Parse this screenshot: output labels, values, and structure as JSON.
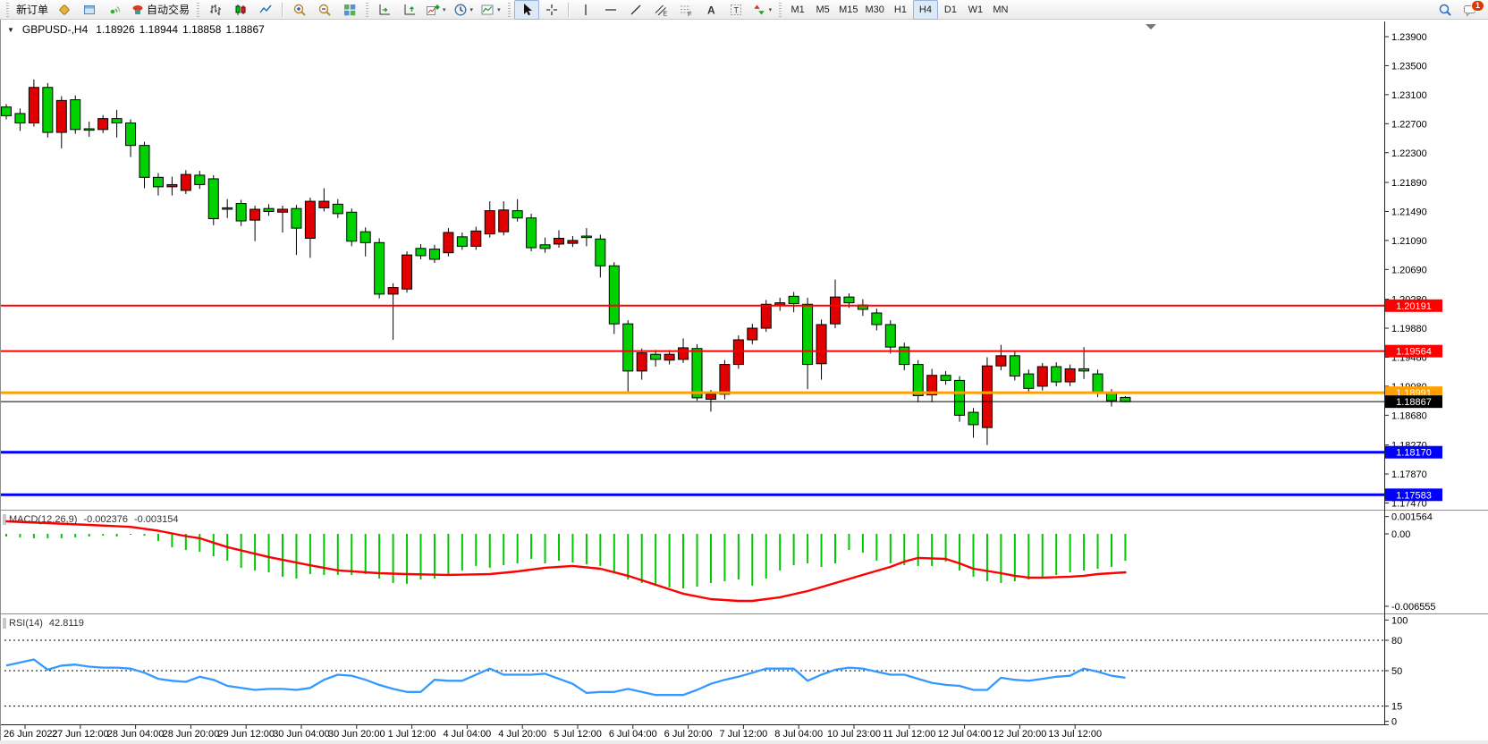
{
  "toolbar": {
    "new_order_label": "新订单",
    "autotrading_label": "自动交易",
    "timeframes": [
      "M1",
      "M5",
      "M15",
      "M30",
      "H1",
      "H4",
      "D1",
      "W1",
      "MN"
    ],
    "active_timeframe": "H4",
    "notification_count": "1",
    "items": [
      {
        "type": "grip"
      },
      {
        "type": "button",
        "name": "new-order-button",
        "icon": "",
        "label_key": "new_order_label"
      },
      {
        "type": "button",
        "name": "chart-profile-button",
        "icon": "gold-diamond"
      },
      {
        "type": "button",
        "name": "market-window-button",
        "icon": "blue-window"
      },
      {
        "type": "button",
        "name": "signals-button",
        "icon": "signal"
      },
      {
        "type": "button",
        "name": "autotrading-button",
        "icon": "autotrade",
        "label_key": "autotrading_label"
      },
      {
        "type": "grip"
      },
      {
        "type": "button",
        "name": "bar-chart-button",
        "icon": "bars"
      },
      {
        "type": "button",
        "name": "candlestick-chart-button",
        "icon": "candles"
      },
      {
        "type": "button",
        "name": "line-chart-button",
        "icon": "linechart"
      },
      {
        "type": "sep"
      },
      {
        "type": "button",
        "name": "zoom-in-button",
        "icon": "zoom-in"
      },
      {
        "type": "button",
        "name": "zoom-out-button",
        "icon": "zoom-out"
      },
      {
        "type": "button",
        "name": "tile-windows-button",
        "icon": "tiles"
      },
      {
        "type": "grip"
      },
      {
        "type": "button",
        "name": "auto-scroll-button",
        "icon": "autoscroll"
      },
      {
        "type": "button",
        "name": "chart-shift-button",
        "icon": "chartshift"
      },
      {
        "type": "button",
        "name": "indicators-button",
        "icon": "add-indicator",
        "caret": true
      },
      {
        "type": "button",
        "name": "periods-button",
        "icon": "clock",
        "caret": true
      },
      {
        "type": "button",
        "name": "templates-button",
        "icon": "template",
        "caret": true
      },
      {
        "type": "grip"
      },
      {
        "type": "button",
        "name": "cursor-button",
        "icon": "cursor",
        "active": true
      },
      {
        "type": "button",
        "name": "crosshair-button",
        "icon": "crosshair"
      },
      {
        "type": "sep"
      },
      {
        "type": "button",
        "name": "vertical-line-button",
        "icon": "vline"
      },
      {
        "type": "button",
        "name": "horizontal-line-button",
        "icon": "hline"
      },
      {
        "type": "button",
        "name": "trendline-button",
        "icon": "trendline"
      },
      {
        "type": "button",
        "name": "channel-button",
        "icon": "channel"
      },
      {
        "type": "button",
        "name": "fibonacci-button",
        "icon": "fibo"
      },
      {
        "type": "button",
        "name": "text-button",
        "icon": "text-a"
      },
      {
        "type": "button",
        "name": "text-label-button",
        "icon": "text-t"
      },
      {
        "type": "button",
        "name": "arrows-button",
        "icon": "shapes",
        "caret": true
      },
      {
        "type": "grip"
      },
      {
        "type": "timeframes"
      },
      {
        "type": "spacer"
      },
      {
        "type": "button",
        "name": "search-button",
        "icon": "magnifier-blue"
      },
      {
        "type": "button",
        "name": "notifications-button",
        "icon": "chat",
        "badge": "1"
      }
    ]
  },
  "chart": {
    "title": {
      "symbol_period": "GBPUSD-,H4",
      "open": "1.18926",
      "high": "1.18944",
      "low": "1.18858",
      "close": "1.18867"
    },
    "price_axis_ticks": [
      {
        "label": "1.23900",
        "value": 1.239
      },
      {
        "label": "1.23500",
        "value": 1.235
      },
      {
        "label": "1.23100",
        "value": 1.231
      },
      {
        "label": "1.22700",
        "value": 1.227
      },
      {
        "label": "1.22300",
        "value": 1.223
      },
      {
        "label": "1.21890",
        "value": 1.2189
      },
      {
        "label": "1.21490",
        "value": 1.2149
      },
      {
        "label": "1.21090",
        "value": 1.2109
      },
      {
        "label": "1.20690",
        "value": 1.2069
      },
      {
        "label": "1.20280",
        "value": 1.2028
      },
      {
        "label": "1.19880",
        "value": 1.1988
      },
      {
        "label": "1.19480",
        "value": 1.1948
      },
      {
        "label": "1.19080",
        "value": 1.1908
      },
      {
        "label": "1.18680",
        "value": 1.1868
      },
      {
        "label": "1.18270",
        "value": 1.1827
      },
      {
        "label": "1.17870",
        "value": 1.1787
      },
      {
        "label": "1.17470",
        "value": 1.1747
      }
    ],
    "time_axis_labels": [
      "26 Jun 2022",
      "27 Jun 12:00",
      "28 Jun 04:00",
      "28 Jun 20:00",
      "29 Jun 12:00",
      "30 Jun 04:00",
      "30 Jun 20:00",
      "1 Jul 12:00",
      "4 Jul 04:00",
      "4 Jul 20:00",
      "5 Jul 12:00",
      "6 Jul 04:00",
      "6 Jul 20:00",
      "7 Jul 12:00",
      "8 Jul 04:00",
      "10 Jul 23:00",
      "11 Jul 12:00",
      "12 Jul 04:00",
      "12 Jul 20:00",
      "13 Jul 12:00"
    ]
  },
  "macd": {
    "label": "MACD(12,26,9)",
    "value_main": "-0.002376",
    "value_signal": "-0.003154",
    "axis_labels": [
      {
        "label": "0.001564",
        "value": 0.001564
      },
      {
        "label": "0.00",
        "value": 0
      },
      {
        "label": "-0.006555",
        "value": -0.006555
      }
    ]
  },
  "rsi": {
    "label": "RSI(14)",
    "value": "42.8119",
    "axis_labels": [
      {
        "label": "100",
        "value": 100
      },
      {
        "label": "80",
        "value": 80
      },
      {
        "label": "50",
        "value": 50
      },
      {
        "label": "15",
        "value": 15
      },
      {
        "label": "0",
        "value": 0
      }
    ],
    "dashed_levels": [
      80,
      50,
      15
    ]
  },
  "colors": {
    "bull_candle": "#e00000",
    "bear_candle": "#00d200",
    "candle_outline": "#000000",
    "macd_histogram": "#00c800",
    "macd_signal": "#ff0000",
    "rsi_line": "#3399ff",
    "bid_line": "#000000"
  },
  "chart_data": {
    "type": "candlestick",
    "symbol": "GBPUSD-",
    "timeframe": "H4",
    "ohlc": [
      [
        1.2293,
        1.2297,
        1.2276,
        1.2281
      ],
      [
        1.2284,
        1.2291,
        1.226,
        1.2271
      ],
      [
        1.2271,
        1.2331,
        1.2266,
        1.232
      ],
      [
        1.232,
        1.2326,
        1.2251,
        1.2258
      ],
      [
        1.2258,
        1.2308,
        1.2236,
        1.2302
      ],
      [
        1.2303,
        1.2309,
        1.2256,
        1.2262
      ],
      [
        1.2263,
        1.2273,
        1.2252,
        1.2261
      ],
      [
        1.2262,
        1.2282,
        1.2257,
        1.2277
      ],
      [
        1.2277,
        1.2289,
        1.2251,
        1.2271
      ],
      [
        1.2271,
        1.2276,
        1.2224,
        1.224
      ],
      [
        1.224,
        1.2245,
        1.2181,
        1.2196
      ],
      [
        1.2196,
        1.2202,
        1.2171,
        1.2183
      ],
      [
        1.2183,
        1.2197,
        1.2171,
        1.2186
      ],
      [
        1.2178,
        1.2206,
        1.2173,
        1.22
      ],
      [
        1.2199,
        1.2205,
        1.218,
        1.2186
      ],
      [
        1.2194,
        1.2199,
        1.213,
        1.2139
      ],
      [
        1.2154,
        1.2166,
        1.214,
        1.2152
      ],
      [
        1.216,
        1.2165,
        1.2129,
        1.2136
      ],
      [
        1.2137,
        1.2157,
        1.2108,
        1.2152
      ],
      [
        1.2153,
        1.2159,
        1.2143,
        1.2149
      ],
      [
        1.2148,
        1.2157,
        1.212,
        1.2152
      ],
      [
        1.2153,
        1.2158,
        1.2089,
        1.2126
      ],
      [
        1.2112,
        1.2168,
        1.2085,
        1.2163
      ],
      [
        1.2154,
        1.2181,
        1.2149,
        1.2163
      ],
      [
        1.2159,
        1.2166,
        1.214,
        1.2146
      ],
      [
        1.2148,
        1.2153,
        1.2101,
        1.2108
      ],
      [
        1.2121,
        1.2127,
        1.2087,
        1.2106
      ],
      [
        1.2106,
        1.2112,
        1.2029,
        1.2035
      ],
      [
        1.2035,
        1.205,
        1.1972,
        1.2044
      ],
      [
        1.2042,
        1.2094,
        1.2037,
        1.2089
      ],
      [
        1.2098,
        1.2104,
        1.2083,
        1.2088
      ],
      [
        1.2097,
        1.2103,
        1.2078,
        1.2083
      ],
      [
        1.2092,
        1.2126,
        1.2087,
        1.212
      ],
      [
        1.2114,
        1.212,
        1.2096,
        1.2101
      ],
      [
        1.2101,
        1.2128,
        1.2096,
        1.2122
      ],
      [
        1.2118,
        1.2163,
        1.2113,
        1.215
      ],
      [
        1.2121,
        1.2163,
        1.2116,
        1.2151
      ],
      [
        1.215,
        1.2166,
        1.2135,
        1.214
      ],
      [
        1.214,
        1.2146,
        1.2094,
        1.2099
      ],
      [
        1.2103,
        1.2113,
        1.2092,
        1.2098
      ],
      [
        1.2104,
        1.2123,
        1.2099,
        1.2112
      ],
      [
        1.2105,
        1.2115,
        1.21,
        1.2109
      ],
      [
        1.2115,
        1.2126,
        1.2101,
        1.2113
      ],
      [
        1.2111,
        1.2117,
        1.2058,
        1.2074
      ],
      [
        1.2074,
        1.2079,
        1.198,
        1.1994
      ],
      [
        1.1994,
        1.1999,
        1.1898,
        1.1929
      ],
      [
        1.1929,
        1.196,
        1.1917,
        1.1954
      ],
      [
        1.1952,
        1.1958,
        1.1935,
        1.1945
      ],
      [
        1.1944,
        1.1958,
        1.1938,
        1.1952
      ],
      [
        1.1945,
        1.1974,
        1.194,
        1.1961
      ],
      [
        1.196,
        1.1966,
        1.1888,
        1.1892
      ],
      [
        1.189,
        1.1903,
        1.1873,
        1.1897
      ],
      [
        1.1897,
        1.1944,
        1.189,
        1.1938
      ],
      [
        1.1938,
        1.1978,
        1.1932,
        1.1972
      ],
      [
        1.1972,
        1.1994,
        1.1966,
        1.1988
      ],
      [
        1.1988,
        1.2027,
        1.1983,
        1.2021
      ],
      [
        1.2019,
        1.203,
        1.2012,
        1.2023
      ],
      [
        1.2032,
        1.2038,
        1.201,
        1.2022
      ],
      [
        1.2021,
        1.203,
        1.1904,
        1.1938
      ],
      [
        1.1939,
        1.2,
        1.1917,
        1.1993
      ],
      [
        1.1994,
        1.2055,
        1.1988,
        1.2031
      ],
      [
        1.2031,
        1.2036,
        1.2016,
        1.2023
      ],
      [
        1.202,
        1.2028,
        1.2005,
        1.2014
      ],
      [
        1.2009,
        1.2015,
        1.1985,
        1.1993
      ],
      [
        1.1993,
        1.1999,
        1.1953,
        1.1962
      ],
      [
        1.1962,
        1.1968,
        1.193,
        1.1938
      ],
      [
        1.1938,
        1.1944,
        1.1886,
        1.1895
      ],
      [
        1.1896,
        1.1932,
        1.1886,
        1.1923
      ],
      [
        1.1923,
        1.1929,
        1.191,
        1.1916
      ],
      [
        1.1916,
        1.1922,
        1.1859,
        1.1868
      ],
      [
        1.1872,
        1.1878,
        1.1837,
        1.1855
      ],
      [
        1.1851,
        1.1948,
        1.1827,
        1.1936
      ],
      [
        1.1936,
        1.1965,
        1.193,
        1.195
      ],
      [
        1.195,
        1.1956,
        1.1916,
        1.1922
      ],
      [
        1.1925,
        1.1931,
        1.1898,
        1.1905
      ],
      [
        1.1908,
        1.194,
        1.1902,
        1.1935
      ],
      [
        1.1935,
        1.1941,
        1.1908,
        1.1914
      ],
      [
        1.1914,
        1.1938,
        1.1908,
        1.1932
      ],
      [
        1.1932,
        1.1962,
        1.1918,
        1.1929
      ],
      [
        1.1925,
        1.1931,
        1.1893,
        1.1898
      ],
      [
        1.1898,
        1.1904,
        1.188,
        1.1888
      ],
      [
        1.18926,
        1.18944,
        1.18858,
        1.18867
      ]
    ],
    "horizontal_lines": [
      {
        "price": 1.20191,
        "label": "1.20191",
        "color": "#ff0000",
        "width": 2
      },
      {
        "price": 1.19564,
        "label": "1.19564",
        "color": "#ff0000",
        "width": 2
      },
      {
        "price": 1.18991,
        "label": "1.18991",
        "color": "#ffa000",
        "width": 3
      },
      {
        "price": 1.1817,
        "label": "1.18170",
        "color": "#0000ff",
        "width": 3
      },
      {
        "price": 1.17583,
        "label": "1.17583",
        "color": "#0000ff",
        "width": 3
      }
    ],
    "bid": {
      "price": 1.18867,
      "label": "1.18867"
    },
    "macd_histogram": [
      -0.00024,
      -0.00032,
      -0.0004,
      -0.0004,
      -0.0004,
      -0.00032,
      -0.00024,
      -0.00016,
      -0.00024,
      -8e-05,
      -0.00016,
      -0.00065,
      -0.00121,
      -0.00146,
      -0.00162,
      -0.00202,
      -0.00243,
      -0.00307,
      -0.00332,
      -0.00348,
      -0.00388,
      -0.00405,
      -0.00364,
      -0.00372,
      -0.00372,
      -0.00372,
      -0.00364,
      -0.00405,
      -0.00445,
      -0.00453,
      -0.00413,
      -0.00405,
      -0.00372,
      -0.00332,
      -0.00291,
      -0.00307,
      -0.00283,
      -0.00267,
      -0.00227,
      -0.00267,
      -0.00243,
      -0.00259,
      -0.00275,
      -0.00291,
      -0.00348,
      -0.00413,
      -0.00445,
      -0.00469,
      -0.00485,
      -0.00494,
      -0.00477,
      -0.00445,
      -0.00429,
      -0.00413,
      -0.00469,
      -0.00405,
      -0.00332,
      -0.00283,
      -0.00267,
      -0.00299,
      -0.00267,
      -0.00146,
      -0.0017,
      -0.00243,
      -0.00267,
      -0.00283,
      -0.00291,
      -0.00291,
      -0.00251,
      -0.00332,
      -0.00388,
      -0.00429,
      -0.00445,
      -0.00429,
      -0.00413,
      -0.00388,
      -0.00372,
      -0.00348,
      -0.00332,
      -0.00316,
      -0.00299,
      -0.00243
    ],
    "macd_signal_points": [
      [
        0,
        0.00113
      ],
      [
        3,
        0.00097
      ],
      [
        6,
        0.00081
      ],
      [
        9,
        0.00063
      ],
      [
        11,
        0.00028
      ],
      [
        13,
        -0.0002
      ],
      [
        14,
        -0.0004
      ],
      [
        16,
        -0.0012
      ],
      [
        19,
        -0.0021
      ],
      [
        22,
        -0.00285
      ],
      [
        24,
        -0.0033
      ],
      [
        27,
        -0.00356
      ],
      [
        29,
        -0.00364
      ],
      [
        32,
        -0.00372
      ],
      [
        35,
        -0.00364
      ],
      [
        37,
        -0.0034
      ],
      [
        39,
        -0.00307
      ],
      [
        41,
        -0.00291
      ],
      [
        43,
        -0.00316
      ],
      [
        45,
        -0.0038
      ],
      [
        47,
        -0.00461
      ],
      [
        49,
        -0.00542
      ],
      [
        51,
        -0.00591
      ],
      [
        53,
        -0.00607
      ],
      [
        54,
        -0.00607
      ],
      [
        56,
        -0.00574
      ],
      [
        58,
        -0.00518
      ],
      [
        60,
        -0.00445
      ],
      [
        62,
        -0.00372
      ],
      [
        64,
        -0.00299
      ],
      [
        65,
        -0.00251
      ],
      [
        66,
        -0.00218
      ],
      [
        68,
        -0.00227
      ],
      [
        69,
        -0.00267
      ],
      [
        70,
        -0.00316
      ],
      [
        72,
        -0.00356
      ],
      [
        73,
        -0.0038
      ],
      [
        74,
        -0.00396
      ],
      [
        75,
        -0.00396
      ],
      [
        77,
        -0.00388
      ],
      [
        78,
        -0.0038
      ],
      [
        79,
        -0.00364
      ],
      [
        81,
        -0.00348
      ]
    ],
    "rsi_values": [
      55,
      58,
      61,
      51,
      55,
      56,
      54,
      53,
      53,
      52,
      48,
      42,
      40,
      39,
      44,
      41,
      35,
      33,
      31,
      32,
      32,
      31,
      33,
      41,
      46,
      45,
      41,
      36,
      32,
      29,
      29,
      41,
      40,
      40,
      46,
      52,
      46,
      46,
      46,
      47,
      42,
      37,
      28,
      29,
      29,
      32,
      29,
      26,
      26,
      26,
      31,
      37,
      41,
      44,
      48,
      52,
      52,
      52,
      40,
      46,
      51,
      53,
      52,
      49,
      46,
      46,
      42,
      38,
      36,
      35,
      31,
      31,
      43,
      41,
      40,
      42,
      44,
      45,
      52,
      49,
      45,
      43
    ]
  }
}
